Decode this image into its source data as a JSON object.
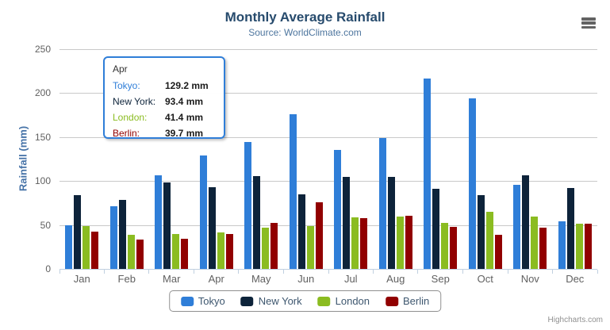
{
  "chart_data": {
    "type": "bar",
    "title": "Monthly Average Rainfall",
    "subtitle": "Source: WorldClimate.com",
    "xlabel": "",
    "ylabel": "Rainfall (mm)",
    "ylim": [
      0,
      250
    ],
    "y_ticks": [
      0,
      50,
      100,
      150,
      200,
      250
    ],
    "grid": true,
    "legend_position": "bottom",
    "categories": [
      "Jan",
      "Feb",
      "Mar",
      "Apr",
      "May",
      "Jun",
      "Jul",
      "Aug",
      "Sep",
      "Oct",
      "Nov",
      "Dec"
    ],
    "series": [
      {
        "name": "Tokyo",
        "color": "#2f7ed8",
        "values": [
          49.9,
          71.5,
          106.4,
          129.2,
          144.0,
          176.0,
          135.6,
          148.5,
          216.4,
          194.1,
          95.6,
          54.4
        ]
      },
      {
        "name": "New York",
        "color": "#0d233a",
        "values": [
          83.6,
          78.8,
          98.5,
          93.4,
          106.0,
          84.5,
          105.0,
          104.3,
          91.2,
          83.5,
          106.6,
          92.3
        ]
      },
      {
        "name": "London",
        "color": "#8bbc21",
        "values": [
          48.9,
          38.8,
          39.3,
          41.4,
          47.0,
          48.3,
          59.0,
          59.6,
          52.4,
          65.2,
          59.3,
          51.2
        ]
      },
      {
        "name": "Berlin",
        "color": "#910000",
        "values": [
          42.4,
          33.2,
          34.5,
          39.7,
          52.6,
          75.5,
          57.4,
          60.4,
          47.6,
          39.1,
          46.8,
          51.1
        ]
      }
    ]
  },
  "tooltip": {
    "header": "Apr",
    "rows": [
      {
        "label": "Tokyo:",
        "value": "129.2 mm",
        "color": "#2f7ed8"
      },
      {
        "label": "New York:",
        "value": "93.4 mm",
        "color": "#0d233a"
      },
      {
        "label": "London:",
        "value": "41.4 mm",
        "color": "#8bbc21"
      },
      {
        "label": "Berlin:",
        "value": "39.7 mm",
        "color": "#910000"
      }
    ]
  },
  "credits": "Highcharts.com"
}
